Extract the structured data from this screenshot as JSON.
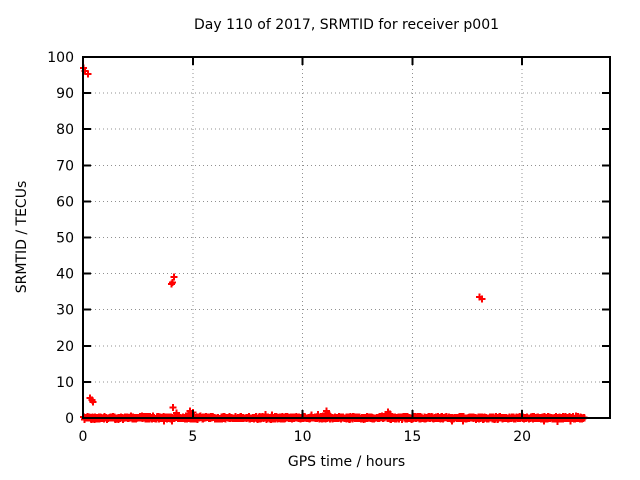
{
  "window": {
    "background": "#ffffff"
  },
  "chart_data": {
    "type": "scatter",
    "title": "Day 110 of 2017, SRMTID for receiver p001",
    "xlabel": "GPS time / hours",
    "ylabel": "SRMTID / TECUs",
    "xlim": [
      0,
      24
    ],
    "ylim": [
      0,
      100
    ],
    "xticks": [
      0,
      5,
      10,
      15,
      20
    ],
    "yticks": [
      0,
      10,
      20,
      30,
      40,
      50,
      60,
      70,
      80,
      90,
      100
    ],
    "grid": true,
    "legend": "none",
    "marker": "plus",
    "series_color": "#ff0000",
    "grid_color": "#909090",
    "border_color": "#000000",
    "series": [
      {
        "name": "SRMTID",
        "outlier_points": [
          [
            0.02,
            96.9
          ],
          [
            0.1,
            96.1
          ],
          [
            0.22,
            95.3
          ],
          [
            0.33,
            5.6
          ],
          [
            0.4,
            5.0
          ],
          [
            0.46,
            4.5
          ],
          [
            4.02,
            37.1
          ],
          [
            4.08,
            37.5
          ],
          [
            4.15,
            39.0
          ],
          [
            4.1,
            2.9
          ],
          [
            4.25,
            1.4
          ],
          [
            4.8,
            1.2
          ],
          [
            4.87,
            2.0
          ],
          [
            4.93,
            1.1
          ],
          [
            5.0,
            1.5
          ],
          [
            8.3,
            1.0
          ],
          [
            8.6,
            0.9
          ],
          [
            10.4,
            0.9
          ],
          [
            10.7,
            1.0
          ],
          [
            11.05,
            1.3
          ],
          [
            11.1,
            2.0
          ],
          [
            11.16,
            1.1
          ],
          [
            11.22,
            0.8
          ],
          [
            13.9,
            1.7
          ],
          [
            13.97,
            1.1
          ],
          [
            18.05,
            33.5
          ],
          [
            18.16,
            32.9
          ],
          [
            3.7,
            -0.9
          ],
          [
            4.05,
            -0.8
          ],
          [
            16.8,
            -0.8
          ],
          [
            17.3,
            -0.9
          ],
          [
            21.0,
            -0.9
          ],
          [
            21.6,
            -1.0
          ],
          [
            22.2,
            -0.8
          ]
        ],
        "baseline_band": {
          "description": "dense band of + markers hugging 0 TECUs across the whole day",
          "x_start": 0.02,
          "x_end": 22.85,
          "y_center": 0.05,
          "y_jitter": 0.5,
          "n": 1100
        }
      }
    ]
  }
}
